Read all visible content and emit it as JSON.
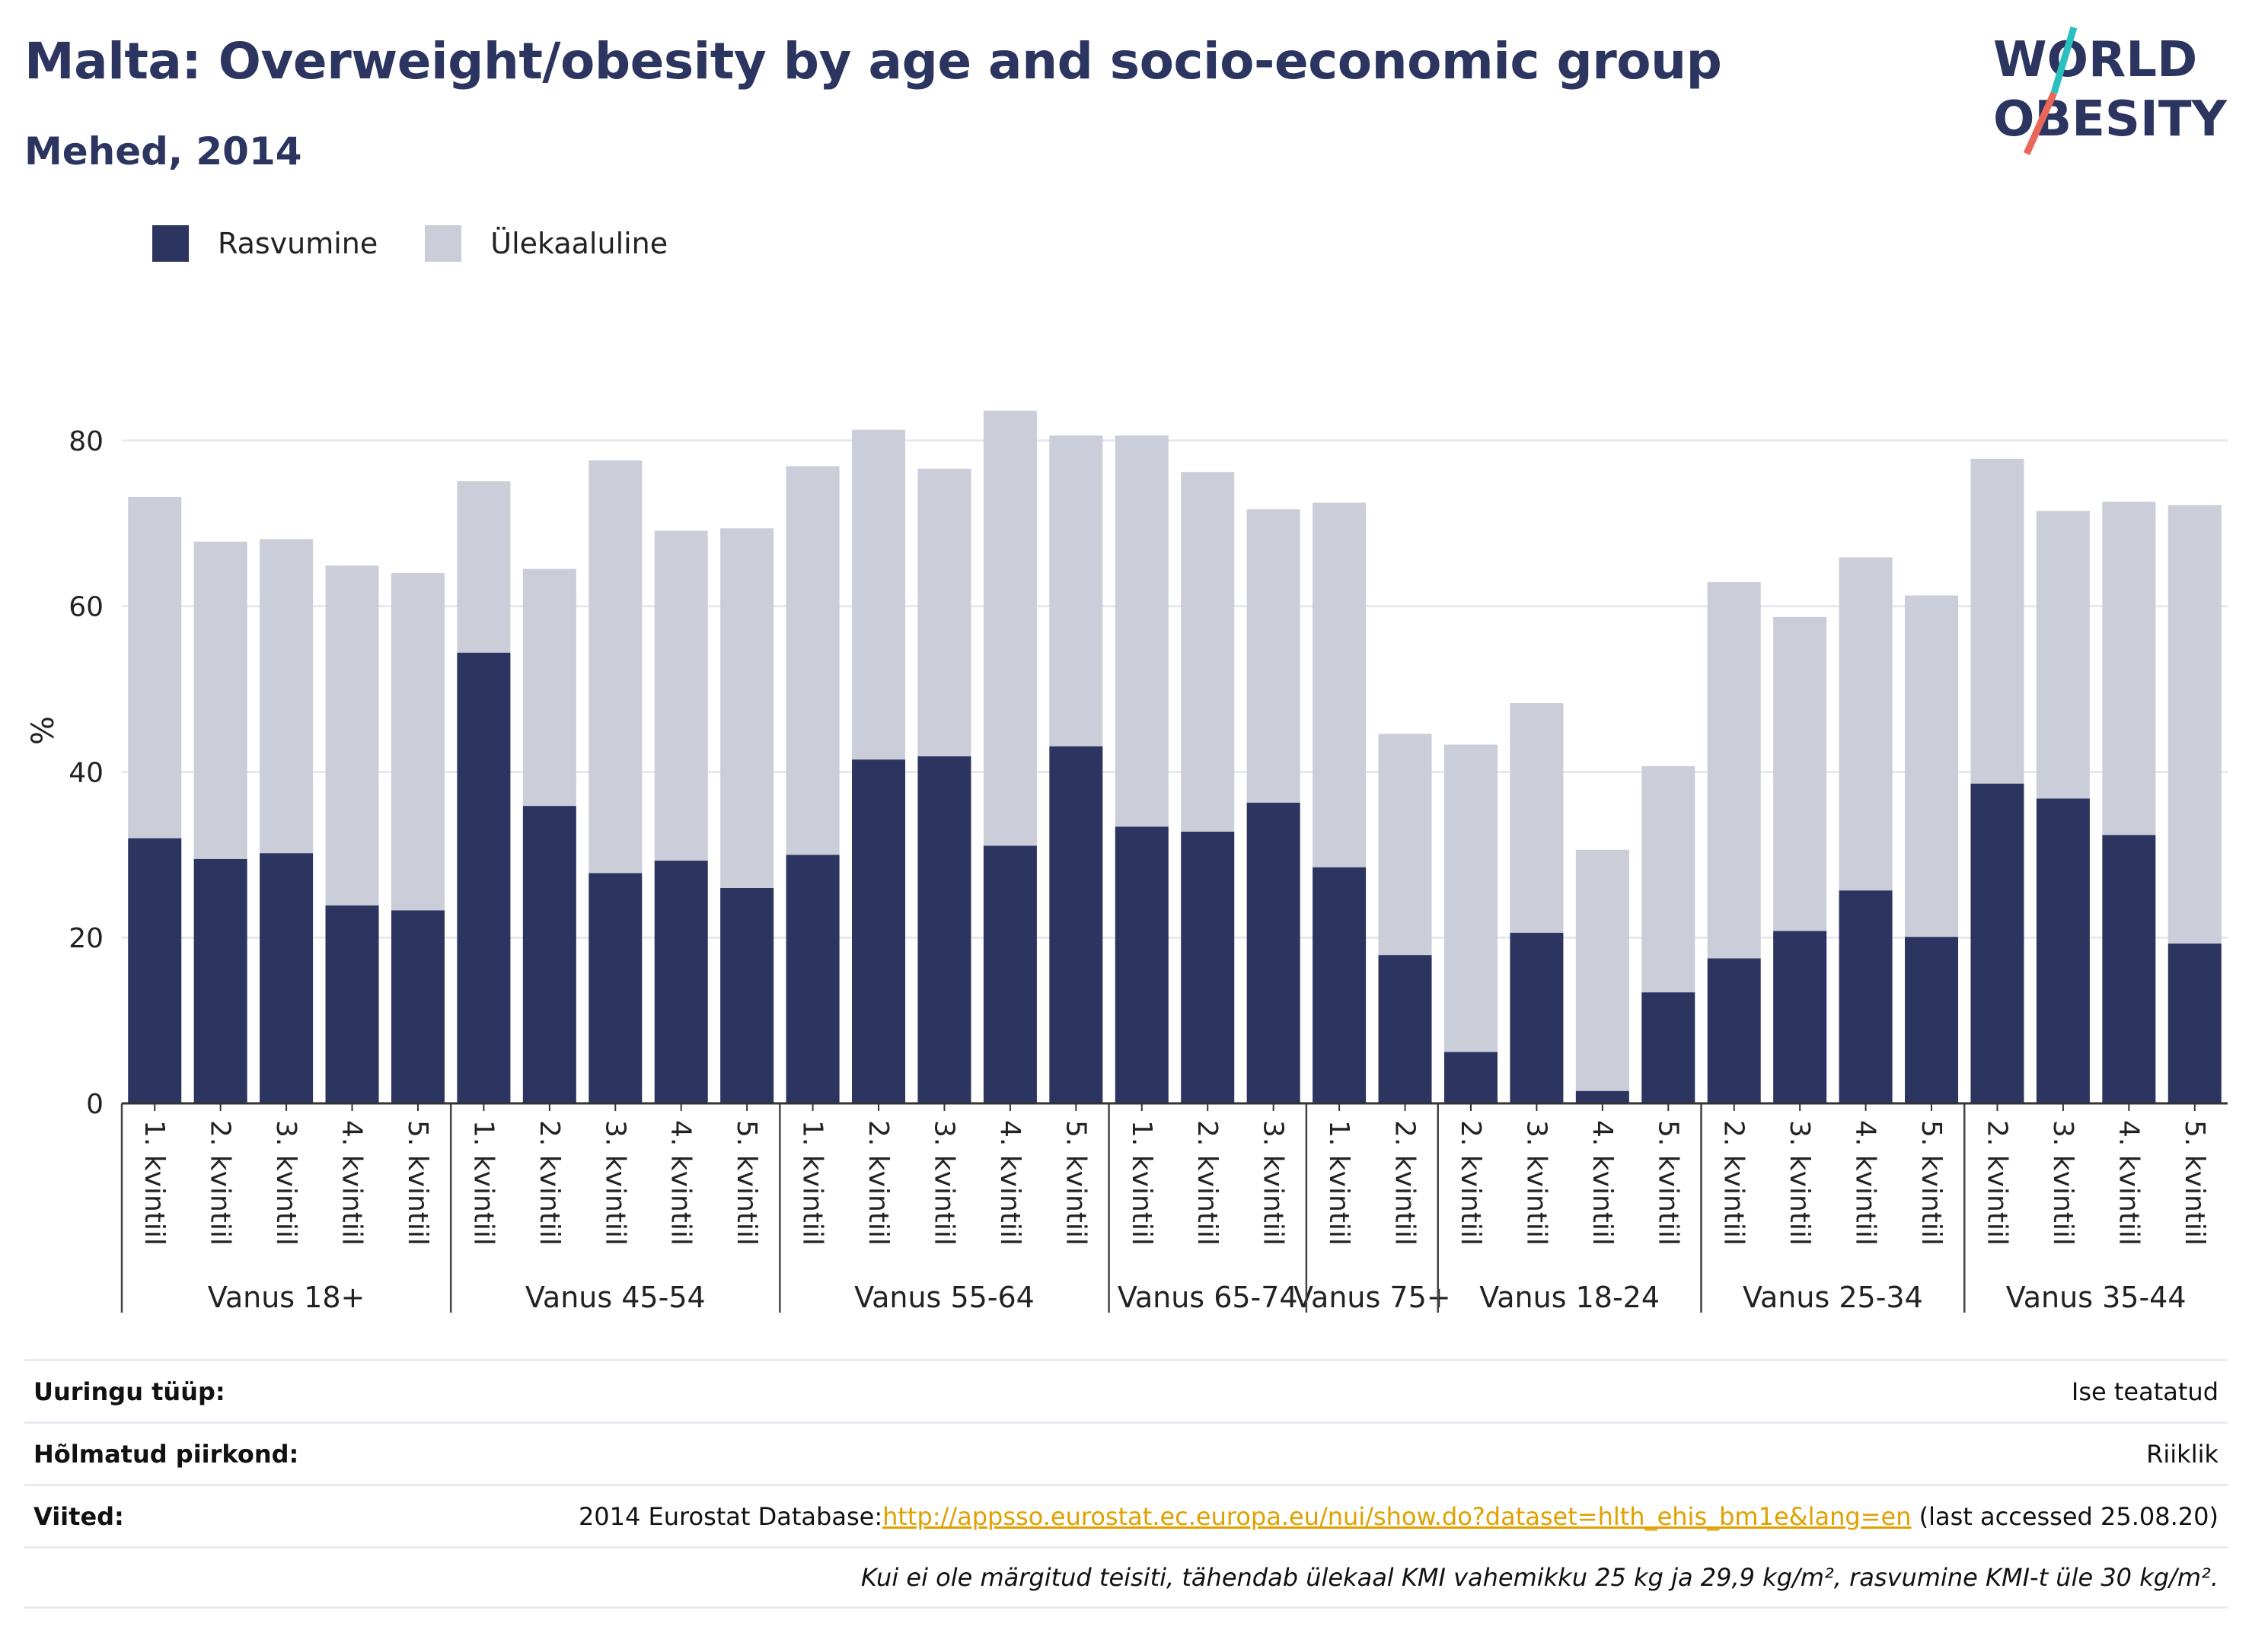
{
  "header": {
    "title": "Malta: Overweight/obesity by age and socio-economic group",
    "subtitle": "Mehed, 2014"
  },
  "logo": {
    "line1": "WORLD",
    "line2": "OBESITY",
    "brand_color": "#2b3560",
    "accent_colors": [
      "#e9675a",
      "#2bbfbf"
    ]
  },
  "legend": {
    "items": [
      {
        "label": "Rasvumine",
        "color": "#2b3560"
      },
      {
        "label": "Ülekaaluline",
        "color": "#cbcdd9"
      }
    ]
  },
  "chart_data": {
    "type": "bar",
    "stacked": true,
    "ylabel": "%",
    "ylim": [
      0,
      90
    ],
    "yticks": [
      0,
      20,
      40,
      60,
      80
    ],
    "grid": true,
    "legend_position": "top-left",
    "groups": [
      {
        "label": "Vanus 18+",
        "categories": [
          "1. kvintiil",
          "2. kvintiil",
          "3. kvintiil",
          "4. kvintiil",
          "5. kvintiil"
        ]
      },
      {
        "label": "Vanus 45-54",
        "categories": [
          "1. kvintiil",
          "2. kvintiil",
          "3. kvintiil",
          "4. kvintiil",
          "5. kvintiil"
        ]
      },
      {
        "label": "Vanus 55-64",
        "categories": [
          "1. kvintiil",
          "2. kvintiil",
          "3. kvintiil",
          "4. kvintiil",
          "5. kvintiil"
        ]
      },
      {
        "label": "Vanus 65-74",
        "categories": [
          "1. kvintiil",
          "2. kvintiil",
          "3. kvintiil"
        ]
      },
      {
        "label": "Vanus 75+",
        "categories": [
          "1. kvintiil",
          "2. kvintiil"
        ]
      },
      {
        "label": "Vanus 18-24",
        "categories": [
          "2. kvintiil",
          "3. kvintiil",
          "4. kvintiil",
          "5. kvintiil"
        ]
      },
      {
        "label": "Vanus 25-34",
        "categories": [
          "2. kvintiil",
          "3. kvintiil",
          "4. kvintiil",
          "5. kvintiil"
        ]
      },
      {
        "label": "Vanus 35-44",
        "categories": [
          "2. kvintiil",
          "3. kvintiil",
          "4. kvintiil",
          "5. kvintiil"
        ]
      }
    ],
    "series": [
      {
        "name": "Rasvumine",
        "color": "#2b3560",
        "values": [
          32.0,
          29.5,
          30.2,
          23.9,
          23.3,
          54.4,
          35.9,
          27.8,
          29.3,
          26.0,
          30.0,
          41.5,
          41.9,
          31.1,
          43.1,
          33.4,
          32.8,
          36.3,
          28.5,
          17.9,
          6.2,
          20.6,
          1.5,
          13.4,
          17.5,
          20.8,
          25.7,
          20.1,
          38.6,
          36.8,
          32.4,
          19.3
        ]
      },
      {
        "name": "Ülekaaluline",
        "color": "#cbcdd9",
        "values": [
          41.2,
          38.3,
          37.9,
          41.0,
          40.7,
          20.7,
          28.6,
          49.8,
          39.8,
          43.4,
          46.9,
          39.8,
          34.7,
          52.5,
          37.5,
          47.2,
          43.4,
          35.4,
          44.0,
          26.7,
          37.1,
          27.7,
          29.1,
          27.3,
          45.4,
          37.9,
          40.2,
          41.2,
          39.2,
          34.7,
          40.2,
          52.9
        ]
      }
    ]
  },
  "info": {
    "survey_type_label": "Uuringu tüüp:",
    "survey_type_value": "Ise teatatud",
    "region_label": "Hõlmatud piirkond:",
    "region_value": "Riiklik",
    "references_label": "Viited:",
    "references_prefix": "2014 Eurostat Database:",
    "references_link": "http://appsso.eurostat.ec.europa.eu/nui/show.do?dataset=hlth_ehis_bm1e&lang=en",
    "references_suffix": " (last accessed 25.08.20)",
    "note": "Kui ei ole märgitud teisiti, tähendab ülekaal KMI vahemikku 25 kg ja 29,9 kg/m², rasvumine KMI-t üle 30 kg/m²."
  }
}
